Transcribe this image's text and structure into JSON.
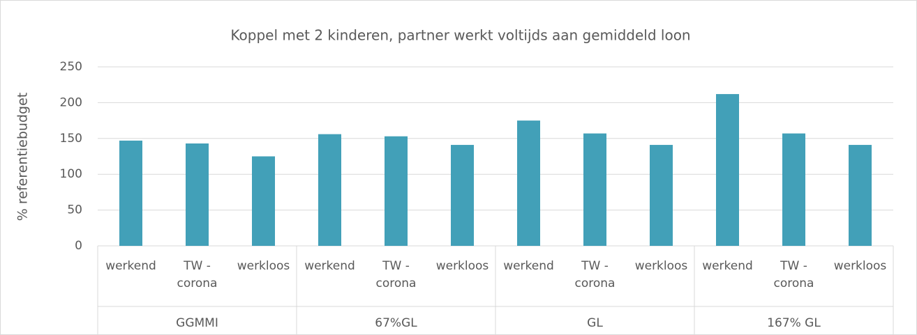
{
  "chart_data": {
    "type": "bar",
    "title": "Koppel met 2 kinderen, partner werkt voltijds aan gemiddeld loon",
    "y_label": "% referentiebudget",
    "categories": [
      "werkend",
      "TW - corona",
      "werkloos",
      "werkend",
      "TW - corona",
      "werkloos",
      "werkend",
      "TW - corona",
      "werkloos",
      "werkend",
      "TW - corona",
      "werkloos"
    ],
    "groups": [
      "GGMMI",
      "67%GL",
      "GL",
      "167% GL"
    ],
    "values": [
      147,
      143,
      125,
      156,
      153,
      141,
      175,
      157,
      141,
      212,
      157,
      141
    ],
    "color": "#42a0b8",
    "ylim": [
      0,
      250
    ],
    "yticks": [
      0,
      50,
      100,
      150,
      200,
      250
    ],
    "grid": true
  }
}
